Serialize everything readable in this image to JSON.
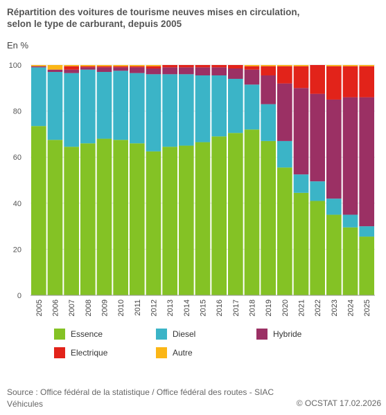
{
  "chart_data": {
    "type": "bar",
    "stacked": true,
    "title": "Répartition des voitures de tourisme neuves mises en circulation, selon le type de carburant, depuis 2005",
    "unit_label": "En %",
    "ylim": [
      0,
      100
    ],
    "yticks": [
      "0",
      "20",
      "40",
      "60",
      "80",
      "100"
    ],
    "grid": true,
    "legend_position": "bottom",
    "categories": [
      "2005",
      "2006",
      "2007",
      "2008",
      "2009",
      "2010",
      "2011",
      "2012",
      "2013",
      "2014",
      "2015",
      "2016",
      "2017",
      "2018",
      "2019",
      "2020",
      "2021",
      "2022",
      "2023",
      "2024",
      "2025"
    ],
    "series": [
      {
        "name": "Essence",
        "color": "#84c225",
        "values": [
          73.5,
          67.5,
          64.5,
          66.0,
          68.0,
          67.5,
          66.0,
          62.5,
          64.5,
          65.0,
          66.5,
          69.0,
          70.5,
          72.0,
          67.0,
          55.5,
          44.5,
          41.0,
          35.0,
          29.5,
          25.5
        ]
      },
      {
        "name": "Diesel",
        "color": "#3bb4c7",
        "values": [
          25.5,
          29.5,
          32.0,
          32.0,
          29.0,
          30.0,
          30.5,
          33.5,
          31.5,
          31.0,
          29.0,
          26.5,
          23.5,
          19.5,
          16.0,
          11.5,
          8.0,
          8.5,
          7.0,
          5.5,
          4.5
        ]
      },
      {
        "name": "Hybride",
        "color": "#9b3064",
        "values": [
          0.5,
          1.0,
          1.5,
          1.0,
          2.0,
          1.5,
          2.5,
          2.5,
          3.0,
          3.0,
          3.5,
          3.5,
          4.5,
          6.5,
          12.5,
          25.0,
          37.5,
          38.0,
          43.0,
          51.0,
          56.0
        ]
      },
      {
        "name": "Electrique",
        "color": "#e2231a",
        "values": [
          0.0,
          0.0,
          1.5,
          0.5,
          0.5,
          0.5,
          0.5,
          1.0,
          1.0,
          1.0,
          1.0,
          1.0,
          1.5,
          1.5,
          4.0,
          7.5,
          9.5,
          12.5,
          14.5,
          13.5,
          13.5
        ]
      },
      {
        "name": "Autre",
        "color": "#fbb616",
        "values": [
          0.5,
          2.0,
          0.5,
          0.5,
          0.5,
          0.5,
          0.5,
          0.5,
          0.0,
          0.0,
          0.0,
          0.0,
          0.0,
          0.5,
          0.5,
          0.5,
          0.5,
          0.0,
          0.5,
          0.5,
          0.5
        ]
      }
    ]
  },
  "footer": {
    "source": "Source : Office fédéral de la statistique / Office fédéral des routes - SIAC Véhicules",
    "copyright": "© OCSTAT 17.02.2026"
  }
}
